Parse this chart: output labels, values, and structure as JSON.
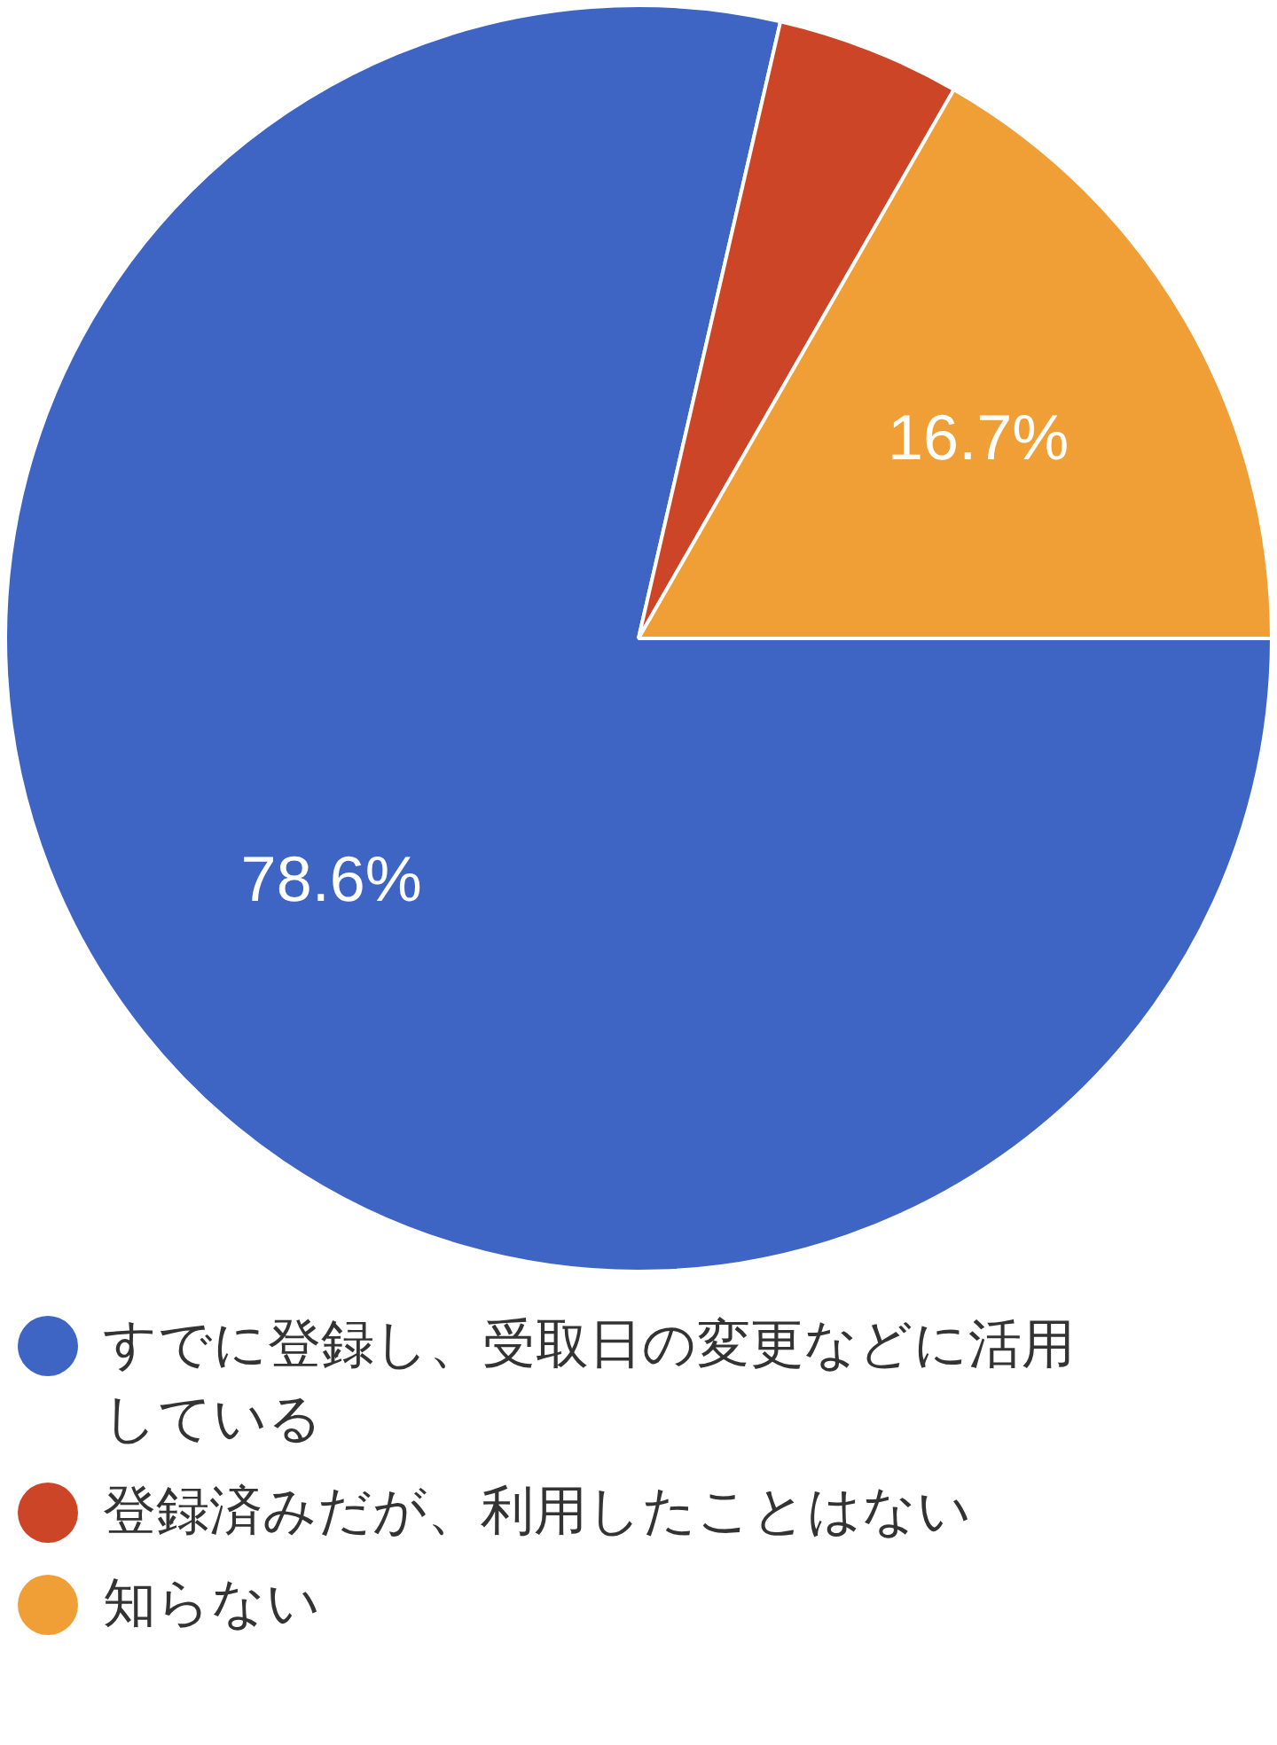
{
  "chart_data": {
    "type": "pie",
    "categories": [
      "すでに登録し、受取日の変更などに活用している",
      "登録済みだが、利用したことはない",
      "知らない"
    ],
    "values": [
      78.6,
      4.7,
      16.7
    ],
    "colors": [
      "#3e64c4",
      "#cc4526",
      "#f09f36"
    ],
    "value_labels": [
      "78.6%",
      null,
      "16.7%"
    ],
    "legend": "bottom"
  }
}
